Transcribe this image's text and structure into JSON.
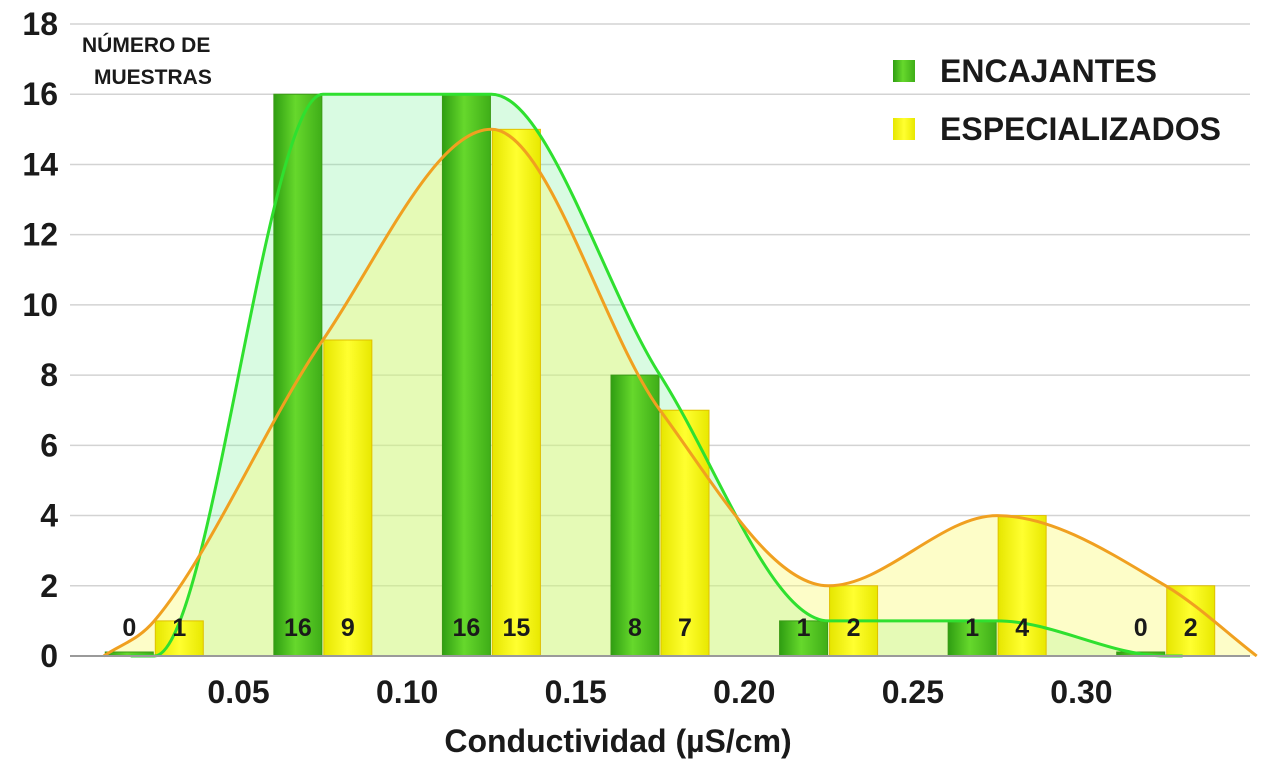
{
  "chart_data": {
    "type": "bar",
    "x_categories": [
      "0.05",
      "0.10",
      "0.15",
      "0.20",
      "0.25",
      "0.30"
    ],
    "ylabel": "NÚMERO DE MUESTRAS",
    "ylabel_lines": [
      "NÚMERO DE",
      "MUESTRAS"
    ],
    "xlabel": "Conductividad (µS/cm)",
    "y_ticks": [
      "0",
      "2",
      "4",
      "6",
      "8",
      "10",
      "12",
      "14",
      "16",
      "18"
    ],
    "ylim": [
      0,
      18
    ],
    "xlim": [
      0,
      0.35
    ],
    "grid": true,
    "legend_position": "top-right",
    "series": [
      {
        "name": "ENCAJANTES",
        "color": "#4cc41f",
        "curve_color": "#2fe02f",
        "x": [
          0.025,
          0.075,
          0.125,
          0.175,
          0.225,
          0.275,
          0.325
        ],
        "values": [
          0,
          16,
          16,
          8,
          1,
          1,
          0
        ],
        "labels": [
          "0",
          "16",
          "16",
          "8",
          "1",
          "1",
          "0"
        ]
      },
      {
        "name": "ESPECIALIZADOS",
        "color": "#f5f500",
        "curve_color": "#f0a020",
        "x": [
          0.025,
          0.075,
          0.125,
          0.175,
          0.225,
          0.275,
          0.325
        ],
        "values": [
          1,
          9,
          15,
          7,
          2,
          4,
          2
        ],
        "labels": [
          "1",
          "9",
          "15",
          "7",
          "2",
          "4",
          "2"
        ]
      }
    ]
  }
}
